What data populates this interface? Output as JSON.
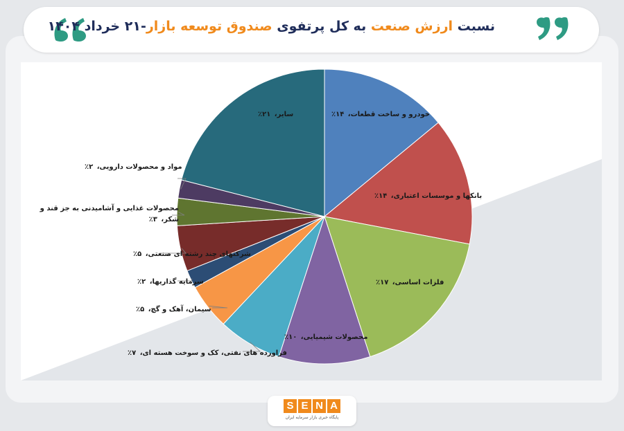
{
  "header": {
    "title_part1": "نسبت",
    "title_accent1": "ارزش صنعت",
    "title_part2": "به کل پرتفوی",
    "title_accent2": "صندوق توسعه بازار",
    "title_part3": "-۲۱ خرداد ۱۴۰۴"
  },
  "logo": {
    "letters": [
      "S",
      "E",
      "N",
      "A"
    ],
    "tagline": "پایگاه خبری بازار سرمایه ایران"
  },
  "colors": {
    "accent": "#f08a1c",
    "title": "#1f2d5a"
  },
  "chart_data": {
    "type": "pie",
    "title": "",
    "start_angle_deg": 0,
    "direction": "clockwise",
    "slices": [
      {
        "name": "خودرو و ساخت قطعات",
        "pct": "۱۴٪",
        "value": 14,
        "color": "#4f81bd"
      },
      {
        "name": "بانکها و موسسات اعتباری",
        "pct": "۱۴٪",
        "value": 14,
        "color": "#c0504d"
      },
      {
        "name": "فلزات اساسی",
        "pct": "۱۷٪",
        "value": 17,
        "color": "#9bbb59"
      },
      {
        "name": "محصولات شیمیایی",
        "pct": "۱۰٪",
        "value": 10,
        "color": "#8064a2"
      },
      {
        "name": "فراورده های نفتی، کک و سوخت هسته ای",
        "pct": "۷٪",
        "value": 7,
        "color": "#4bacc6"
      },
      {
        "name": "سیمان، آهک و گچ",
        "pct": "۵٪",
        "value": 5,
        "color": "#f79646"
      },
      {
        "name": "سرمایه گذاریها",
        "pct": "۲٪",
        "value": 2,
        "color": "#2c4d75"
      },
      {
        "name": "شرکتهای چند رشته ای صنعتی",
        "pct": "۵٪",
        "value": 5,
        "color": "#772c2a"
      },
      {
        "name": "محصولات غذایی و آشامیدنی به جز قند و شکر",
        "pct": "۳٪",
        "value": 3,
        "color": "#5f7530"
      },
      {
        "name": "مواد و محصولات دارویی",
        "pct": "۲٪",
        "value": 2,
        "color": "#4d3b62"
      },
      {
        "name": "سایر",
        "pct": "۲۱٪",
        "value": 21,
        "color": "#276a7c"
      }
    ]
  }
}
